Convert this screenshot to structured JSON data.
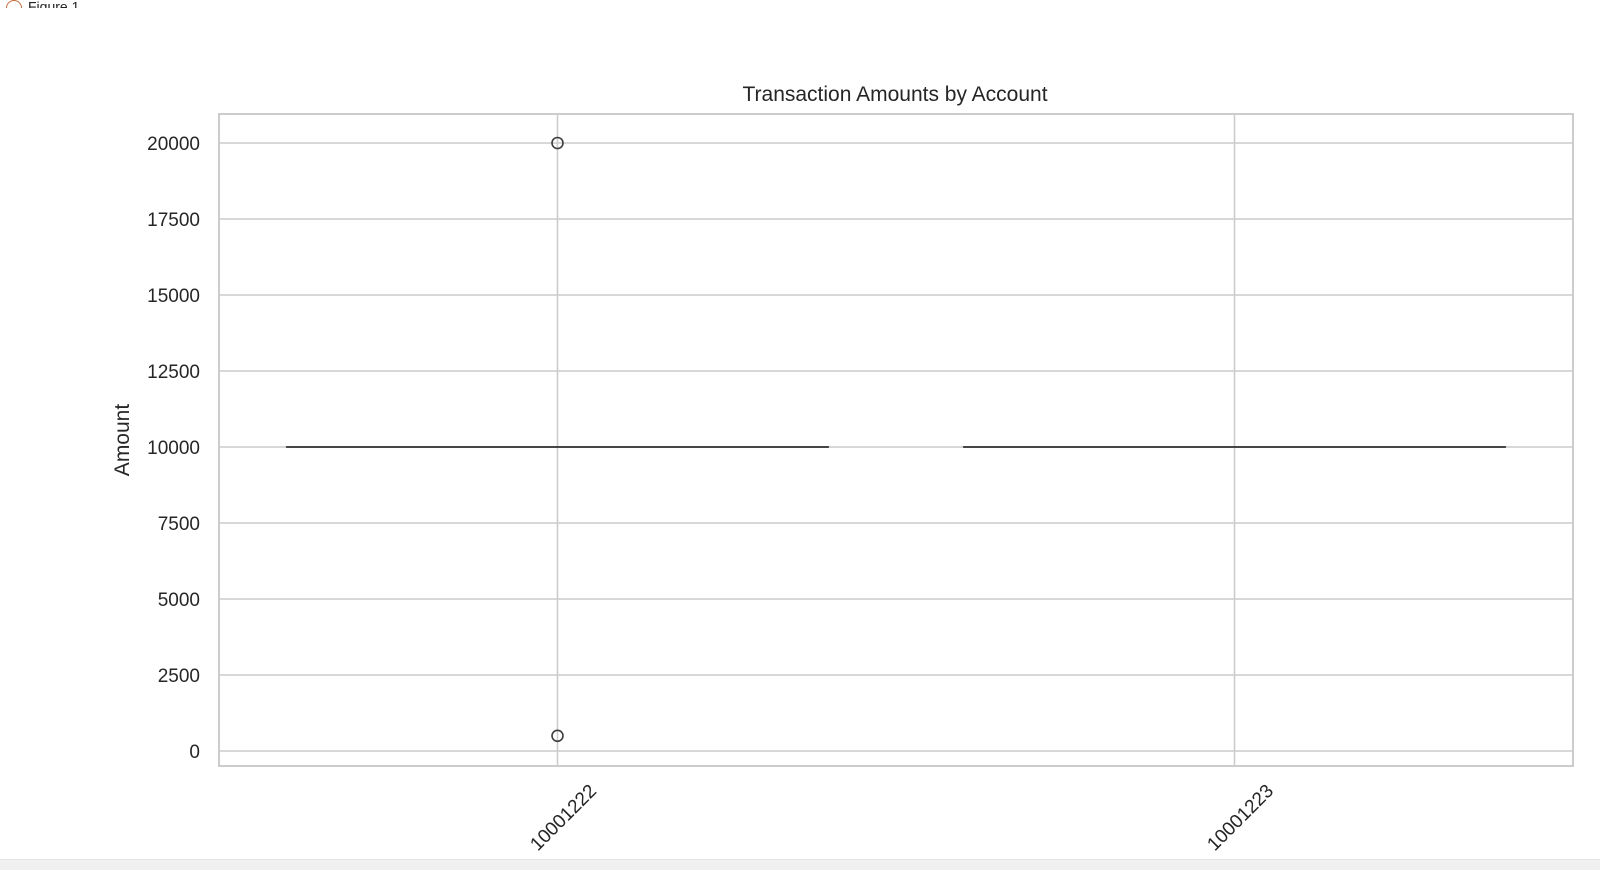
{
  "window": {
    "title": "Figure 1"
  },
  "chart_data": {
    "type": "box",
    "title": "Transaction Amounts by Account",
    "xlabel": "",
    "ylabel": "Amount",
    "ylim": [
      -500,
      21000
    ],
    "yticks": [
      0,
      2500,
      5000,
      7500,
      10000,
      12500,
      15000,
      17500,
      20000
    ],
    "grid": true,
    "categories": [
      "10001222",
      "10001223"
    ],
    "boxes": [
      {
        "category": "10001222",
        "q1": 10000,
        "median": 10000,
        "q3": 10000,
        "whisker_low": 10000,
        "whisker_high": 10000,
        "outliers": [
          20000,
          500
        ]
      },
      {
        "category": "10001223",
        "q1": 10000,
        "median": 10000,
        "q3": 10000,
        "whisker_low": 10000,
        "whisker_high": 10000,
        "outliers": []
      }
    ],
    "colors": {
      "grid": "#cccccc",
      "frame": "#cccccc",
      "box_line": "#3d3d3d",
      "text": "#262626"
    }
  }
}
